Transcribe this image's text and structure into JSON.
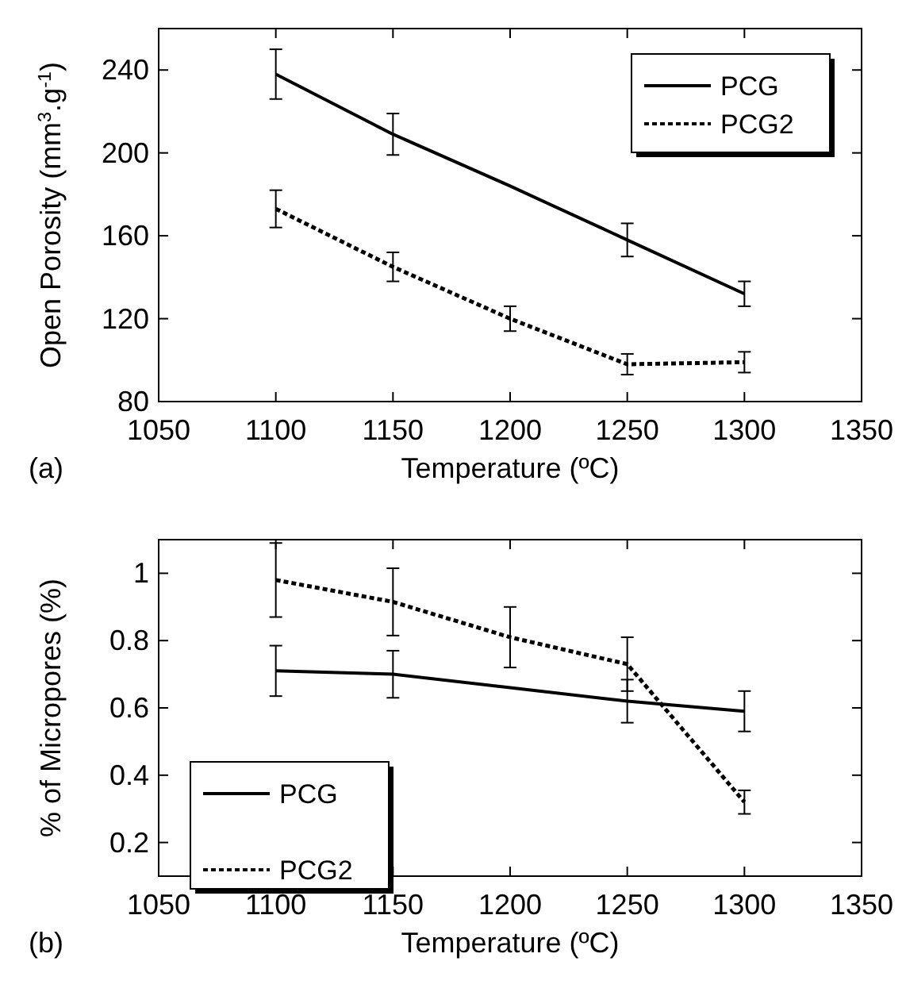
{
  "chart_data": [
    {
      "type": "line",
      "xlabel": "Temperature (ºC)",
      "ylabel": "Open Porosity (mm$^{3}$.g$^{-1}$)",
      "annotations": [
        "(a)"
      ],
      "x": [
        1100,
        1150,
        1200,
        1250,
        1300
      ],
      "xlim": [
        1050,
        1350
      ],
      "xticks": [
        1050,
        1100,
        1150,
        1200,
        1250,
        1300,
        1350
      ],
      "ylim": [
        80,
        260
      ],
      "yticks": [
        80,
        120,
        160,
        200,
        240
      ],
      "legend": "top right",
      "marker": "none",
      "series": [
        {
          "name": "PCG",
          "color": "#000000",
          "line_style": "solid",
          "values": [
            238,
            209,
            184,
            158,
            132
          ],
          "errors": [
            12,
            10,
            null,
            8,
            6
          ]
        },
        {
          "name": "PCG2",
          "color": "#000000",
          "line_style": "dotted",
          "values": [
            173,
            145,
            120,
            98,
            99
          ],
          "errors": [
            9,
            7,
            6,
            5,
            5
          ]
        }
      ]
    },
    {
      "type": "line",
      "xlabel": "Temperature (ºC)",
      "ylabel": "% of Micropores (%)",
      "annotations": [
        "(b)"
      ],
      "x": [
        1100,
        1150,
        1200,
        1250,
        1300
      ],
      "xlim": [
        1050,
        1350
      ],
      "xticks": [
        1050,
        1100,
        1150,
        1200,
        1250,
        1300,
        1350
      ],
      "ylim": [
        0.1,
        1.1
      ],
      "yticks": [
        0.2,
        0.4,
        0.6,
        0.8,
        1
      ],
      "legend": "bottom left",
      "marker": "none",
      "series": [
        {
          "name": "PCG",
          "color": "#000000",
          "line_style": "solid",
          "values": [
            0.71,
            0.7,
            0.66,
            0.62,
            0.59
          ],
          "errors": [
            0.075,
            0.07,
            null,
            0.064,
            0.06
          ]
        },
        {
          "name": "PCG2",
          "color": "#000000",
          "line_style": "dotted",
          "values": [
            0.98,
            0.915,
            0.81,
            0.73,
            0.32
          ],
          "errors": [
            0.11,
            0.1,
            0.09,
            0.08,
            0.035
          ]
        }
      ]
    }
  ]
}
